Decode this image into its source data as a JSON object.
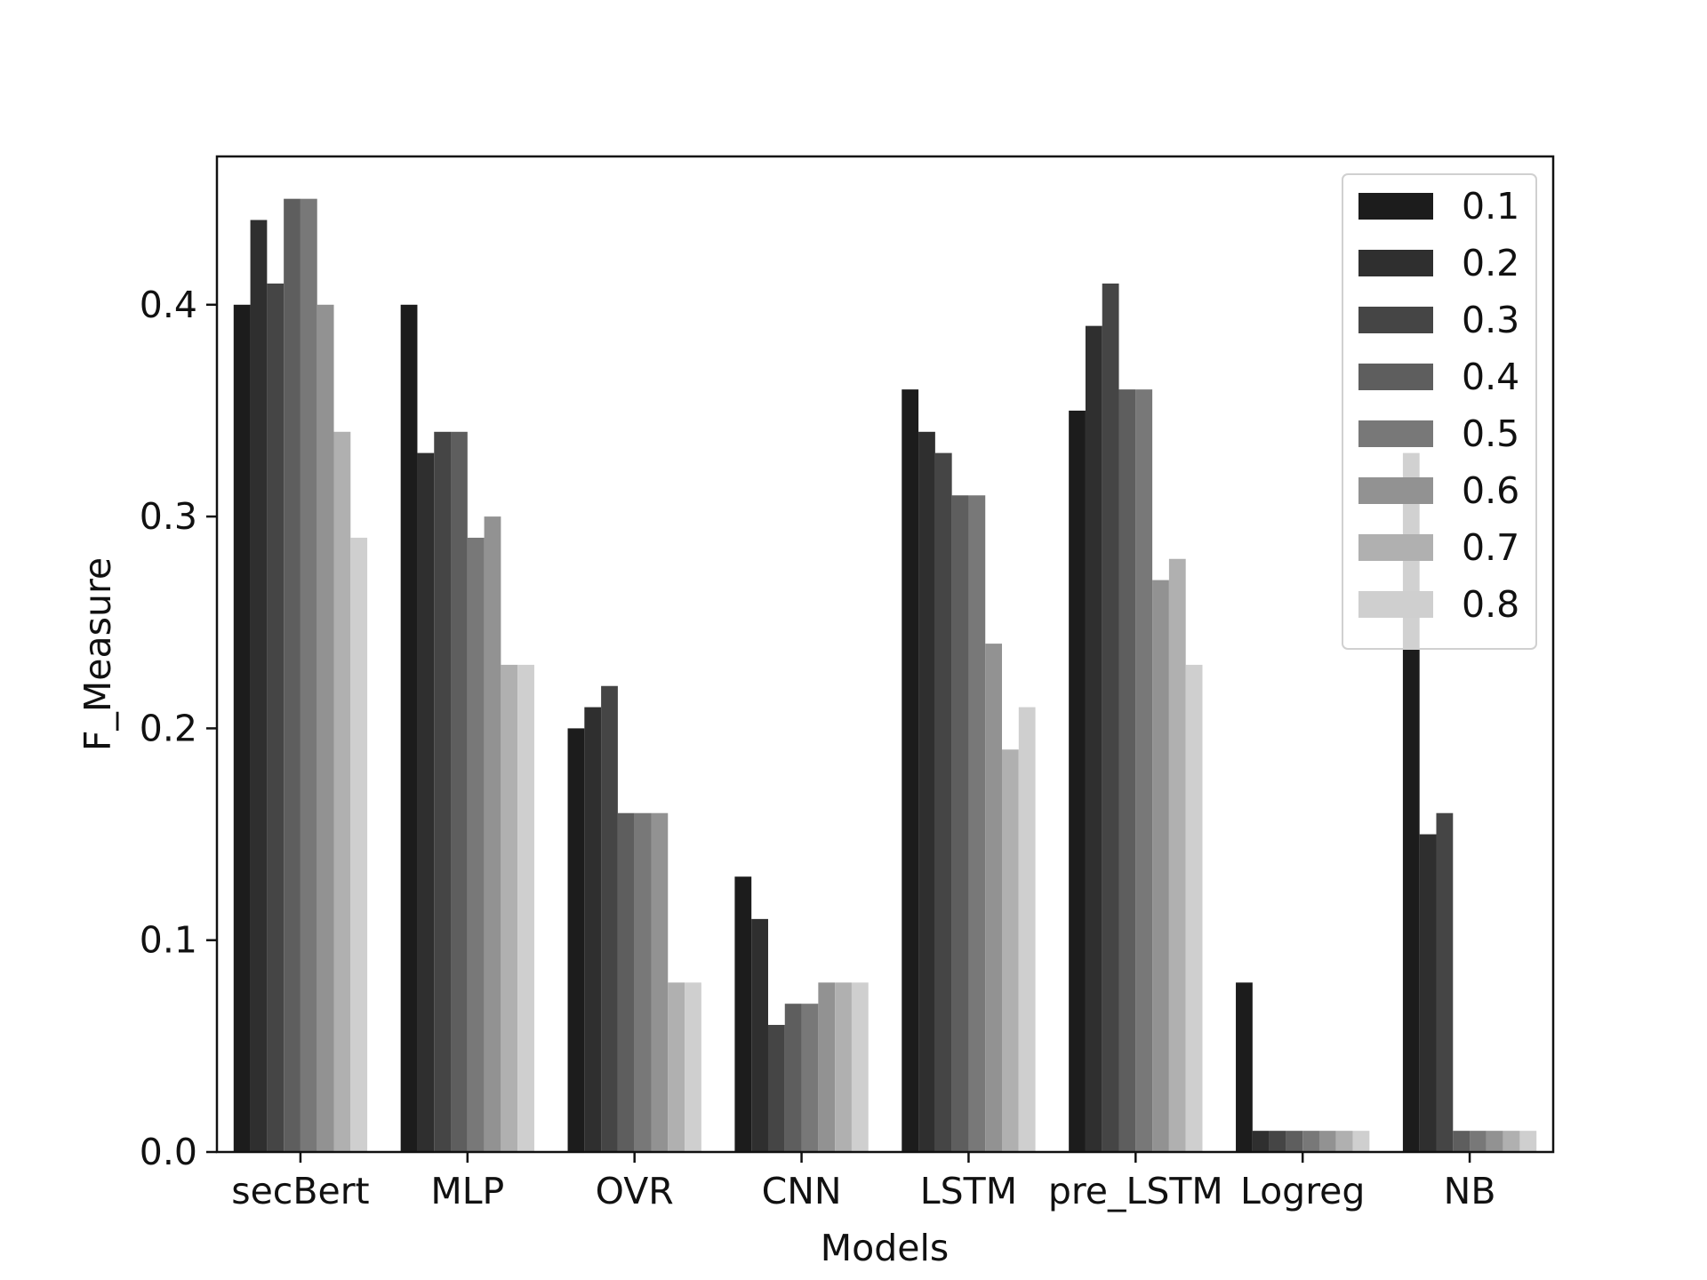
{
  "chart_data": {
    "type": "bar",
    "xlabel": "Models",
    "ylabel": "F_Measure",
    "ylim": [
      0.0,
      0.47
    ],
    "yticks": [
      0.0,
      0.1,
      0.2,
      0.3,
      0.4
    ],
    "ytick_labels": [
      "0.0",
      "0.1",
      "0.2",
      "0.3",
      "0.4"
    ],
    "grid": false,
    "legend_position": "top-right",
    "categories": [
      "secBert",
      "MLP",
      "OVR",
      "CNN",
      "LSTM",
      "pre_LSTM",
      "Logreg",
      "NB"
    ],
    "series": [
      {
        "name": "0.1",
        "color": "#1c1c1c",
        "values": [
          0.4,
          0.4,
          0.2,
          0.13,
          0.36,
          0.35,
          0.08,
          0.33
        ]
      },
      {
        "name": "0.2",
        "color": "#2f2f2f",
        "values": [
          0.44,
          0.33,
          0.21,
          0.11,
          0.34,
          0.39,
          0.01,
          0.15
        ]
      },
      {
        "name": "0.3",
        "color": "#454545",
        "values": [
          0.41,
          0.34,
          0.22,
          0.06,
          0.33,
          0.41,
          0.01,
          0.16
        ]
      },
      {
        "name": "0.4",
        "color": "#5e5e5e",
        "values": [
          0.45,
          0.34,
          0.16,
          0.07,
          0.31,
          0.36,
          0.01,
          0.01
        ]
      },
      {
        "name": "0.5",
        "color": "#787878",
        "values": [
          0.45,
          0.29,
          0.16,
          0.07,
          0.31,
          0.36,
          0.01,
          0.01
        ]
      },
      {
        "name": "0.6",
        "color": "#929292",
        "values": [
          0.4,
          0.3,
          0.16,
          0.08,
          0.24,
          0.27,
          0.01,
          0.01
        ]
      },
      {
        "name": "0.7",
        "color": "#b0b0b0",
        "values": [
          0.34,
          0.23,
          0.08,
          0.08,
          0.19,
          0.28,
          0.01,
          0.01
        ]
      },
      {
        "name": "0.8",
        "color": "#cfcfcf",
        "values": [
          0.29,
          0.23,
          0.08,
          0.08,
          0.21,
          0.23,
          0.01,
          0.01
        ]
      }
    ]
  }
}
